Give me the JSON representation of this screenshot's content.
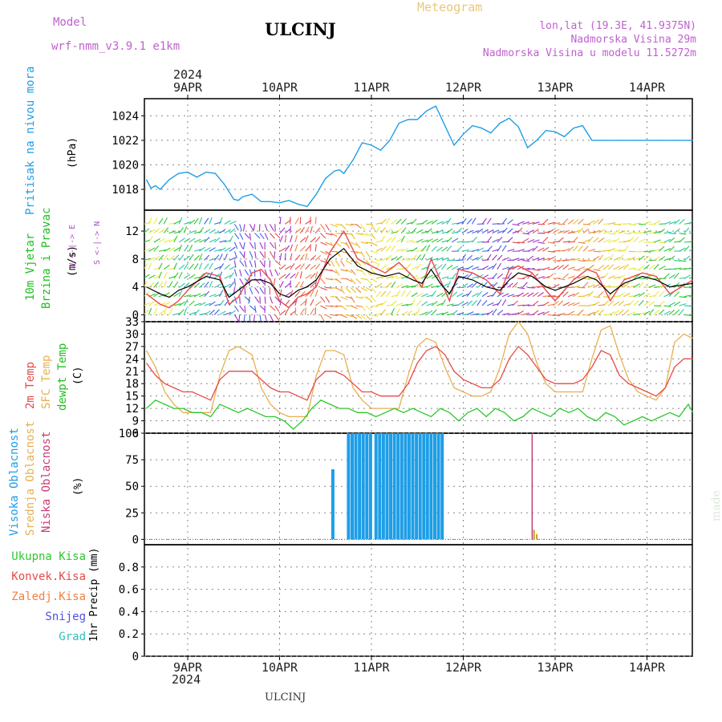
{
  "header": {
    "model_label": "Model",
    "model_name": "wrf-nmm_v3.9.1 e1km",
    "station": "ULCINJ",
    "product": "Meteogram",
    "coords": "lon,lat (19.3E, 41.9375N)",
    "elevation": "Nadmorska Visina 29m",
    "model_elevation": "Nadmorska Visina u modelu 11.5272m",
    "year_top": "2024",
    "year_bottom": "2024",
    "footer_station": "ULCINJ",
    "made_by": "made by Angel"
  },
  "dates": [
    "9APR",
    "10APR",
    "11APR",
    "12APR",
    "13APR",
    "14APR"
  ],
  "panel_labels": {
    "pressure": [
      "Pritisak na nivou mora",
      "(hPa)"
    ],
    "wind": [
      "10m Vjetar",
      "Brzina i Pravac",
      "(m/s)"
    ],
    "compass": [
      "W <-|-> E",
      "S <-|-> N"
    ],
    "temp": [
      "2m Temp",
      "SFC Temp",
      "dewpt Temp",
      "(C)"
    ],
    "cloud": [
      "Visoka Oblacnost",
      "Srednja Oblacnost",
      "Niska Oblacnost",
      "(%)"
    ],
    "precip_unit": "1hr Precip (mm)",
    "precip_legend": [
      "Ukupna Kisa",
      "Konvek.Kisa",
      "Zaledj.Kisa",
      "Snijeg",
      "Grad"
    ]
  },
  "colors": {
    "pressure": "#1e9ee6",
    "temp2m": "#e84a4a",
    "sfc": "#e8b050",
    "dewpt": "#2ec82e",
    "high_cloud": "#1e9ee6",
    "mid_cloud": "#c8a020",
    "low_cloud": "#c83c78",
    "precip_total": "#2ec82e",
    "precip_conv": "#e84a4a",
    "precip_freezing": "#f08040",
    "precip_snow": "#5050e0",
    "precip_hail": "#30c0c0"
  },
  "chart_data": [
    {
      "type": "line",
      "name": "pressure",
      "x_unit": "days from 9APR 00UTC",
      "x": [
        -0.45,
        -0.4,
        -0.35,
        -0.3,
        -0.2,
        -0.1,
        0,
        0.1,
        0.2,
        0.3,
        0.4,
        0.5,
        0.55,
        0.6,
        0.7,
        0.8,
        0.9,
        1.0,
        1.1,
        1.2,
        1.3,
        1.4,
        1.5,
        1.6,
        1.65,
        1.7,
        1.8,
        1.9,
        2.0,
        2.1,
        2.2,
        2.3,
        2.4,
        2.5,
        2.6,
        2.7,
        2.8,
        2.9,
        3.0,
        3.1,
        3.2,
        3.3,
        3.4,
        3.5,
        3.6,
        3.7,
        3.8,
        3.9,
        4.0,
        4.1,
        4.2,
        4.3,
        4.4,
        4.5,
        4.6,
        4.7,
        4.8,
        4.9,
        5.0,
        5.1,
        5.2,
        5.3,
        5.4,
        5.5
      ],
      "y": [
        1018.8,
        1018.1,
        1018.3,
        1018.0,
        1018.8,
        1019.3,
        1019.4,
        1019.0,
        1019.4,
        1019.3,
        1018.4,
        1017.2,
        1017.1,
        1017.4,
        1017.6,
        1017.0,
        1017.0,
        1016.9,
        1017.1,
        1016.8,
        1016.6,
        1017.6,
        1018.9,
        1019.5,
        1019.6,
        1019.3,
        1020.4,
        1021.8,
        1021.6,
        1021.2,
        1022.0,
        1023.4,
        1023.7,
        1023.7,
        1024.4,
        1024.8,
        1023.2,
        1021.6,
        1022.5,
        1023.2,
        1023.0,
        1022.6,
        1023.4,
        1023.8,
        1023.1,
        1021.4,
        1022.0,
        1022.8,
        1022.7,
        1022.3,
        1023.0,
        1023.2,
        1022.0,
        1022.0,
        1022.0,
        1022.0,
        1022.0,
        1022.0,
        1022.0,
        1022.0,
        1022.0,
        1022.0,
        1022.0,
        1022.0
      ],
      "ylim": [
        1016.3,
        1025.4
      ],
      "yticks": [
        1018,
        1020,
        1022,
        1024
      ],
      "ylabel": "(hPa)"
    },
    {
      "type": "line",
      "name": "wind",
      "x_unit": "days from 9APR 00UTC",
      "ylim": [
        -1,
        15
      ],
      "yticks": [
        0,
        4,
        8,
        12
      ],
      "ylabel": "(m/s)",
      "series": [
        {
          "name": "speed",
          "x": [
            -0.45,
            -0.3,
            -0.2,
            -0.1,
            0,
            0.2,
            0.35,
            0.45,
            0.55,
            0.7,
            0.8,
            0.9,
            1.0,
            1.1,
            1.2,
            1.3,
            1.4,
            1.55,
            1.7,
            1.85,
            2.0,
            2.15,
            2.3,
            2.45,
            2.55,
            2.65,
            2.75,
            2.85,
            2.95,
            3.1,
            3.25,
            3.4,
            3.5,
            3.6,
            3.75,
            3.9,
            4.0,
            4.2,
            4.35,
            4.45,
            4.6,
            4.75,
            4.95,
            5.1,
            5.25,
            5.5
          ],
          "y": [
            4.0,
            3.0,
            2.5,
            3.5,
            4.0,
            5.5,
            5.0,
            2.5,
            3.5,
            5.0,
            5.0,
            4.5,
            3.0,
            2.5,
            3.5,
            4.0,
            5.0,
            8.0,
            9.5,
            7.0,
            6.0,
            5.5,
            6.0,
            5.0,
            4.5,
            6.5,
            4.5,
            3.0,
            5.5,
            5.0,
            4.0,
            3.5,
            5.0,
            6.0,
            5.5,
            4.0,
            3.5,
            4.5,
            5.5,
            5.0,
            3.0,
            4.5,
            5.5,
            5.0,
            4.0,
            4.5
          ]
        },
        {
          "name": "gust",
          "x": [
            -0.45,
            -0.3,
            -0.2,
            -0.1,
            0,
            0.2,
            0.35,
            0.45,
            0.55,
            0.7,
            0.8,
            0.9,
            1.0,
            1.1,
            1.2,
            1.3,
            1.4,
            1.55,
            1.7,
            1.85,
            2.0,
            2.15,
            2.3,
            2.45,
            2.55,
            2.65,
            2.75,
            2.85,
            2.95,
            3.1,
            3.25,
            3.4,
            3.5,
            3.6,
            3.75,
            3.9,
            4.0,
            4.2,
            4.35,
            4.45,
            4.6,
            4.75,
            4.95,
            5.1,
            5.25,
            5.5
          ],
          "y": [
            3.0,
            1.5,
            1.0,
            2.0,
            3.5,
            6.0,
            5.5,
            1.5,
            2.5,
            6.0,
            6.5,
            5.0,
            2.0,
            1.0,
            2.5,
            3.0,
            4.0,
            9.0,
            12.0,
            8.0,
            7.0,
            6.0,
            7.5,
            5.5,
            4.0,
            8.0,
            5.0,
            2.0,
            6.5,
            6.0,
            5.0,
            3.0,
            6.5,
            7.0,
            6.0,
            3.5,
            2.0,
            5.0,
            6.5,
            6.0,
            2.0,
            5.0,
            6.0,
            5.5,
            3.0,
            5.0
          ]
        }
      ]
    },
    {
      "type": "line",
      "name": "temperature",
      "x_unit": "days from 9APR 00UTC",
      "ylim": [
        6,
        33
      ],
      "yticks": [
        6,
        9,
        12,
        15,
        18,
        21,
        24,
        27,
        30,
        33
      ],
      "ylabel": "(C)",
      "series": [
        {
          "name": "2m Temp",
          "x": [
            -0.45,
            -0.35,
            -0.25,
            -0.15,
            -0.05,
            0.05,
            0.15,
            0.25,
            0.35,
            0.45,
            0.55,
            0.7,
            0.8,
            0.9,
            1.0,
            1.1,
            1.2,
            1.3,
            1.4,
            1.5,
            1.6,
            1.7,
            1.8,
            1.9,
            2.0,
            2.1,
            2.2,
            2.3,
            2.4,
            2.5,
            2.6,
            2.7,
            2.8,
            2.9,
            3.0,
            3.1,
            3.2,
            3.3,
            3.4,
            3.5,
            3.6,
            3.7,
            3.8,
            3.9,
            4.0,
            4.1,
            4.2,
            4.3,
            4.4,
            4.5,
            4.6,
            4.7,
            4.8,
            4.9,
            5.0,
            5.1,
            5.2,
            5.3,
            5.4,
            5.5
          ],
          "y": [
            23,
            20,
            18,
            17,
            16,
            16,
            15,
            14,
            19,
            21,
            21,
            21,
            19,
            17,
            16,
            16,
            15,
            14,
            19,
            21,
            21,
            20,
            18,
            16,
            16,
            15,
            15,
            15,
            18,
            23,
            26,
            27,
            25,
            21,
            19,
            18,
            17,
            17,
            19,
            24,
            27,
            25,
            22,
            19,
            18,
            18,
            18,
            19,
            22,
            26,
            25,
            20,
            18,
            17,
            16,
            15,
            17,
            22,
            24,
            24
          ]
        },
        {
          "name": "SFC Temp",
          "x": [
            -0.45,
            -0.35,
            -0.25,
            -0.15,
            -0.05,
            0.05,
            0.15,
            0.25,
            0.35,
            0.45,
            0.55,
            0.7,
            0.8,
            0.9,
            1.0,
            1.1,
            1.2,
            1.3,
            1.4,
            1.5,
            1.6,
            1.7,
            1.8,
            1.9,
            2.0,
            2.1,
            2.2,
            2.3,
            2.4,
            2.5,
            2.6,
            2.7,
            2.8,
            2.9,
            3.0,
            3.1,
            3.2,
            3.3,
            3.4,
            3.5,
            3.6,
            3.7,
            3.8,
            3.9,
            4.0,
            4.1,
            4.2,
            4.3,
            4.4,
            4.5,
            4.6,
            4.7,
            4.8,
            4.9,
            5.0,
            5.1,
            5.2,
            5.3,
            5.4,
            5.5
          ],
          "y": [
            26,
            22,
            16,
            13,
            11,
            11,
            11,
            11,
            20,
            26,
            27,
            25,
            17,
            13,
            11,
            10,
            10,
            10,
            20,
            26,
            26,
            25,
            17,
            14,
            12,
            12,
            12,
            12,
            20,
            27,
            29,
            28,
            22,
            17,
            16,
            15,
            15,
            16,
            22,
            30,
            33,
            30,
            23,
            18,
            16,
            16,
            16,
            16,
            24,
            31,
            32,
            25,
            19,
            16,
            15,
            14,
            17,
            28,
            30,
            29
          ]
        },
        {
          "name": "dewpt Temp",
          "x": [
            -0.45,
            -0.35,
            -0.25,
            -0.15,
            -0.05,
            0.05,
            0.15,
            0.25,
            0.35,
            0.45,
            0.55,
            0.65,
            0.75,
            0.85,
            0.95,
            1.05,
            1.15,
            1.25,
            1.35,
            1.45,
            1.55,
            1.65,
            1.75,
            1.85,
            1.95,
            2.05,
            2.15,
            2.25,
            2.35,
            2.45,
            2.55,
            2.65,
            2.75,
            2.85,
            2.95,
            3.05,
            3.15,
            3.25,
            3.35,
            3.45,
            3.55,
            3.65,
            3.75,
            3.85,
            3.95,
            4.05,
            4.15,
            4.25,
            4.35,
            4.45,
            4.55,
            4.65,
            4.75,
            4.85,
            4.95,
            5.05,
            5.15,
            5.25,
            5.35,
            5.45,
            5.5
          ],
          "y": [
            12,
            14,
            13,
            12,
            12,
            11,
            11,
            10,
            13,
            12,
            11,
            12,
            11,
            10,
            10,
            9,
            7,
            9,
            12,
            14,
            13,
            12,
            12,
            11,
            11,
            10,
            11,
            12,
            11,
            12,
            11,
            10,
            12,
            11,
            9,
            11,
            12,
            10,
            12,
            11,
            9,
            10,
            12,
            11,
            10,
            12,
            11,
            12,
            10,
            9,
            11,
            10,
            8,
            9,
            10,
            9,
            10,
            11,
            10,
            13,
            11
          ]
        }
      ]
    },
    {
      "type": "bar",
      "name": "cloudiness",
      "x_unit": "days from 9APR 00UTC",
      "ylim": [
        -5,
        100
      ],
      "yticks": [
        0,
        25,
        50,
        75,
        100
      ],
      "ylabel": "(%)",
      "series": [
        {
          "name": "Visoka Oblacnost",
          "x": [
            1.58,
            1.75,
            1.79,
            1.83,
            1.87,
            1.91,
            1.95,
            1.99,
            2.05,
            2.09,
            2.13,
            2.17,
            2.21,
            2.25,
            2.29,
            2.33,
            2.37,
            2.41,
            2.45,
            2.49,
            2.53,
            2.57,
            2.61,
            2.65,
            2.69,
            2.73,
            2.77
          ],
          "y": [
            66,
            100,
            100,
            100,
            100,
            100,
            100,
            100,
            100,
            100,
            100,
            100,
            100,
            100,
            100,
            100,
            100,
            100,
            100,
            100,
            100,
            100,
            100,
            100,
            100,
            100,
            100
          ]
        },
        {
          "name": "Srednja Oblacnost",
          "x": [
            3.77,
            3.8
          ],
          "y": [
            9,
            5
          ]
        },
        {
          "name": "Niska Oblacnost",
          "x": [
            3.75
          ],
          "y": [
            99
          ]
        }
      ]
    },
    {
      "type": "bar",
      "name": "precipitation",
      "x_unit": "days from 9APR 00UTC",
      "ylim": [
        0,
        1
      ],
      "yticks": [
        0,
        0.2,
        0.4,
        0.6,
        0.8
      ],
      "ylabel": "1hr Precip (mm)",
      "series": [
        {
          "name": "Ukupna Kisa",
          "x": [],
          "y": []
        },
        {
          "name": "Konvek.Kisa",
          "x": [],
          "y": []
        },
        {
          "name": "Zaledj.Kisa",
          "x": [],
          "y": []
        },
        {
          "name": "Snijeg",
          "x": [],
          "y": []
        },
        {
          "name": "Grad",
          "x": [],
          "y": []
        }
      ]
    }
  ]
}
